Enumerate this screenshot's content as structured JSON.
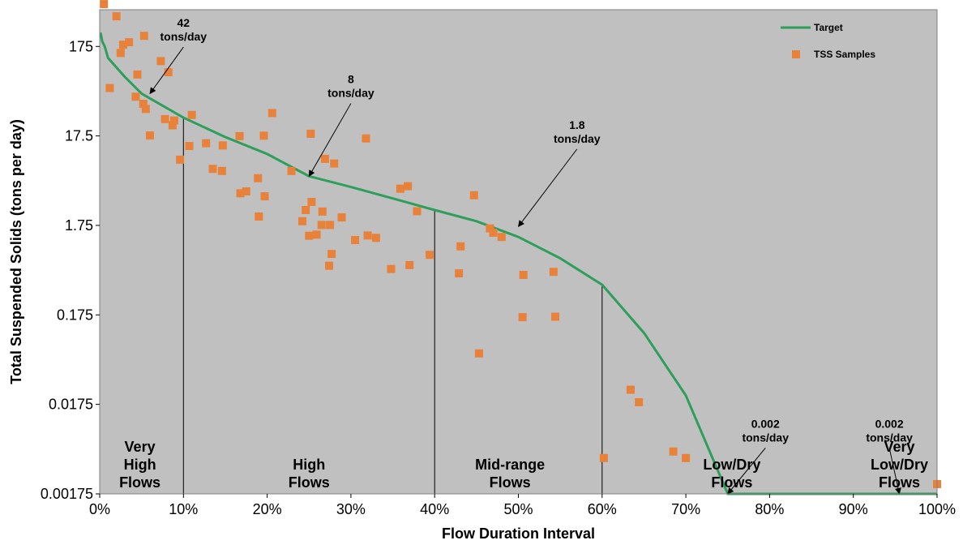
{
  "chart_data": {
    "type": "scatter",
    "xlabel": "Flow Duration Interval",
    "ylabel": "Total Suspended Solids (tons per day)",
    "xlim": [
      0,
      100
    ],
    "ylim": [
      0.00175,
      450
    ],
    "y_scale": "log",
    "plot_background": "#c0c0c0",
    "grid": false,
    "legend_position": "top-right",
    "x_ticks": [
      {
        "value": 0,
        "label": "0%"
      },
      {
        "value": 10,
        "label": "10%"
      },
      {
        "value": 20,
        "label": "20%"
      },
      {
        "value": 30,
        "label": "30%"
      },
      {
        "value": 40,
        "label": "40%"
      },
      {
        "value": 50,
        "label": "50%"
      },
      {
        "value": 60,
        "label": "60%"
      },
      {
        "value": 70,
        "label": "70%"
      },
      {
        "value": 80,
        "label": "80%"
      },
      {
        "value": 90,
        "label": "90%"
      },
      {
        "value": 100,
        "label": "100%"
      }
    ],
    "y_ticks": [
      {
        "value": 0.00175,
        "label": "0.00175"
      },
      {
        "value": 0.0175,
        "label": "0.0175"
      },
      {
        "value": 0.175,
        "label": "0.175"
      },
      {
        "value": 1.75,
        "label": "1.75"
      },
      {
        "value": 17.5,
        "label": "17.5"
      },
      {
        "value": 175,
        "label": "175"
      }
    ],
    "series": [
      {
        "name": "Target",
        "type": "line",
        "color": "#2e9e5b",
        "points": [
          [
            0.1,
            250
          ],
          [
            0.3,
            200
          ],
          [
            0.6,
            175
          ],
          [
            1,
            130
          ],
          [
            3,
            80
          ],
          [
            5,
            52
          ],
          [
            10,
            28
          ],
          [
            15,
            17
          ],
          [
            20,
            11
          ],
          [
            25,
            6.2
          ],
          [
            30,
            4.7
          ],
          [
            35,
            3.5
          ],
          [
            40,
            2.6
          ],
          [
            45,
            1.95
          ],
          [
            50,
            1.3
          ],
          [
            55,
            0.75
          ],
          [
            60,
            0.38
          ],
          [
            65,
            0.11
          ],
          [
            70,
            0.022
          ],
          [
            75,
            0.00175
          ],
          [
            80,
            0.00175
          ],
          [
            90,
            0.00175
          ],
          [
            100,
            0.00175
          ]
        ]
      },
      {
        "name": "TSS Samples",
        "type": "scatter",
        "color": "#e8823a",
        "points": [
          [
            0.5,
            520
          ],
          [
            2,
            380
          ],
          [
            1.2,
            60
          ],
          [
            2.5,
            148
          ],
          [
            2.8,
            183
          ],
          [
            3.5,
            195
          ],
          [
            5.3,
            230
          ],
          [
            4.5,
            85
          ],
          [
            4.3,
            48
          ],
          [
            5.2,
            40
          ],
          [
            5.5,
            35
          ],
          [
            6,
            17.7
          ],
          [
            7.3,
            120
          ],
          [
            7.8,
            27
          ],
          [
            8.2,
            90
          ],
          [
            8.7,
            23
          ],
          [
            8.9,
            26
          ],
          [
            9.6,
            9.5
          ],
          [
            10.7,
            13.5
          ],
          [
            11,
            30
          ],
          [
            12.7,
            14.5
          ],
          [
            13.5,
            7.5
          ],
          [
            14.6,
            7.1
          ],
          [
            14.7,
            13.7
          ],
          [
            16.7,
            17.4
          ],
          [
            16.8,
            4
          ],
          [
            17.5,
            4.2
          ],
          [
            18.9,
            5.9
          ],
          [
            19,
            2.2
          ],
          [
            19.6,
            17.6
          ],
          [
            19.7,
            3.7
          ],
          [
            20.6,
            31.5
          ],
          [
            22.9,
            7.1
          ],
          [
            24.2,
            1.95
          ],
          [
            24.6,
            2.6
          ],
          [
            25,
            1.34
          ],
          [
            25.2,
            18.5
          ],
          [
            25.3,
            3.2
          ],
          [
            25.9,
            1.38
          ],
          [
            26.5,
            1.77
          ],
          [
            26.6,
            2.5
          ],
          [
            26.9,
            9.7
          ],
          [
            27.4,
            0.62
          ],
          [
            27.5,
            1.77
          ],
          [
            27.7,
            0.84
          ],
          [
            28,
            8.6
          ],
          [
            28.9,
            2.15
          ],
          [
            30.5,
            1.2
          ],
          [
            31.8,
            16.4
          ],
          [
            32,
            1.35
          ],
          [
            33,
            1.27
          ],
          [
            34.8,
            0.57
          ],
          [
            35.9,
            4.5
          ],
          [
            36.8,
            4.8
          ],
          [
            37,
            0.63
          ],
          [
            37.9,
            2.52
          ],
          [
            39.4,
            0.82
          ],
          [
            42.9,
            0.51
          ],
          [
            43.1,
            1.02
          ],
          [
            44.7,
            3.8
          ],
          [
            45.3,
            0.065
          ],
          [
            46.6,
            1.62
          ],
          [
            47,
            1.45
          ],
          [
            48,
            1.3
          ],
          [
            50.5,
            0.165
          ],
          [
            50.6,
            0.49
          ],
          [
            54.2,
            0.53
          ],
          [
            54.4,
            0.167
          ],
          [
            60.2,
            0.0044
          ],
          [
            63.4,
            0.0255
          ],
          [
            64.4,
            0.0185
          ],
          [
            68.5,
            0.0052
          ],
          [
            70,
            0.0044
          ],
          [
            100,
            0.00225
          ]
        ]
      }
    ],
    "boundaries": [
      10,
      40,
      60
    ],
    "annotations": [
      {
        "label_lines": [
          "42",
          "tons/day"
        ],
        "text_at": [
          10,
          290
        ],
        "arrow_to": [
          6,
          52
        ]
      },
      {
        "label_lines": [
          "8",
          "tons/day"
        ],
        "text_at": [
          30,
          68
        ],
        "arrow_to": [
          25,
          6.2
        ]
      },
      {
        "label_lines": [
          "1.8",
          "tons/day"
        ],
        "text_at": [
          57,
          21
        ],
        "arrow_to": [
          50,
          1.7
        ]
      },
      {
        "label_lines": [
          "0.002",
          "tons/day"
        ],
        "text_at": [
          79.5,
          0.0096
        ],
        "arrow_to": [
          75,
          0.00175
        ]
      },
      {
        "label_lines": [
          "0.002",
          "tons/day"
        ],
        "text_at": [
          94.3,
          0.0096
        ],
        "arrow_to": [
          95.5,
          0.00175
        ]
      }
    ],
    "zone_labels": [
      {
        "lines": [
          "Very",
          "High",
          "Flows"
        ],
        "x": 4.8
      },
      {
        "lines": [
          "High",
          "Flows"
        ],
        "x": 25
      },
      {
        "lines": [
          "Mid-range",
          "Flows"
        ],
        "x": 49
      },
      {
        "lines": [
          "Low/Dry",
          "Flows"
        ],
        "x": 75.5
      },
      {
        "lines": [
          "Very",
          "Low/Dry",
          "Flows"
        ],
        "x": 95.5
      }
    ]
  }
}
